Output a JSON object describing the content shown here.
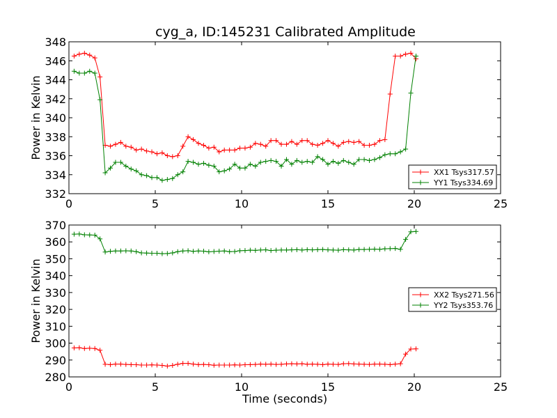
{
  "title": "cyg_a, ID:145231 Calibrated Amplitude",
  "colors": {
    "red": "#ff0000",
    "green": "#008000",
    "axis": "#000000"
  },
  "chart_data": [
    {
      "type": "line",
      "title": "cyg_a, ID:145231 Calibrated Amplitude",
      "xlabel": "",
      "ylabel": "Power in Kelvin",
      "xlim": [
        0,
        25
      ],
      "ylim": [
        332,
        348
      ],
      "xticks": [
        0,
        5,
        10,
        15,
        20,
        25
      ],
      "yticks": [
        332,
        334,
        336,
        338,
        340,
        342,
        344,
        346,
        348
      ],
      "legend_position": "lower-right",
      "x": [
        0.3,
        0.6,
        0.9,
        1.2,
        1.5,
        1.8,
        2.1,
        2.4,
        2.7,
        3.0,
        3.3,
        3.6,
        3.9,
        4.2,
        4.5,
        4.8,
        5.1,
        5.4,
        5.7,
        6.0,
        6.3,
        6.6,
        6.9,
        7.2,
        7.5,
        7.8,
        8.1,
        8.4,
        8.7,
        9.0,
        9.3,
        9.6,
        9.9,
        10.2,
        10.5,
        10.8,
        11.1,
        11.4,
        11.7,
        12.0,
        12.3,
        12.6,
        12.9,
        13.2,
        13.5,
        13.8,
        14.1,
        14.4,
        14.7,
        15.0,
        15.3,
        15.6,
        15.9,
        16.2,
        16.5,
        16.8,
        17.1,
        17.4,
        17.7,
        18.0,
        18.3,
        18.6,
        18.9,
        19.2,
        19.5,
        19.8,
        20.1
      ],
      "series": [
        {
          "name": "XX1 Tsys317.57",
          "color": "#ff0000",
          "values": [
            346.5,
            346.7,
            346.8,
            346.6,
            346.3,
            344.3,
            337.1,
            337.0,
            337.2,
            337.4,
            337.0,
            336.9,
            336.6,
            336.7,
            336.5,
            336.4,
            336.2,
            336.3,
            336.0,
            335.9,
            336.0,
            337.0,
            338.0,
            337.7,
            337.3,
            337.1,
            336.8,
            336.9,
            336.4,
            336.6,
            336.6,
            336.6,
            336.8,
            336.8,
            336.9,
            337.3,
            337.2,
            337.0,
            337.6,
            337.6,
            337.2,
            337.2,
            337.5,
            337.2,
            337.6,
            337.6,
            337.2,
            337.1,
            337.3,
            337.6,
            337.3,
            337.0,
            337.4,
            337.5,
            337.4,
            337.5,
            337.1,
            337.1,
            337.2,
            337.6,
            337.7,
            342.5,
            346.5,
            346.5,
            346.7,
            346.8,
            346.2
          ]
        },
        {
          "name": "YY1 Tsys334.69",
          "color": "#008000",
          "values": [
            344.9,
            344.7,
            344.7,
            344.9,
            344.7,
            341.9,
            334.2,
            334.7,
            335.3,
            335.3,
            334.9,
            334.6,
            334.4,
            334.0,
            333.9,
            333.7,
            333.7,
            333.4,
            333.5,
            333.6,
            334.0,
            334.3,
            335.4,
            335.3,
            335.1,
            335.2,
            335.0,
            334.9,
            334.3,
            334.4,
            334.6,
            335.1,
            334.7,
            334.7,
            335.1,
            334.9,
            335.3,
            335.4,
            335.5,
            335.4,
            334.9,
            335.6,
            335.1,
            335.5,
            335.3,
            335.4,
            335.3,
            335.9,
            335.6,
            335.1,
            335.4,
            335.2,
            335.5,
            335.3,
            335.1,
            335.6,
            335.6,
            335.5,
            335.6,
            335.8,
            336.1,
            336.2,
            336.2,
            336.4,
            336.7,
            342.6,
            346.5
          ]
        }
      ]
    },
    {
      "type": "line",
      "title": "",
      "xlabel": "Time (seconds)",
      "ylabel": "Power in Kelvin",
      "xlim": [
        0,
        25
      ],
      "ylim": [
        280,
        370
      ],
      "xticks": [
        0,
        5,
        10,
        15,
        20,
        25
      ],
      "yticks": [
        280,
        290,
        300,
        310,
        320,
        330,
        340,
        350,
        360,
        370
      ],
      "legend_position": "center-right",
      "x": [
        0.3,
        0.6,
        0.9,
        1.2,
        1.5,
        1.8,
        2.1,
        2.4,
        2.7,
        3.0,
        3.3,
        3.6,
        3.9,
        4.2,
        4.5,
        4.8,
        5.1,
        5.4,
        5.7,
        6.0,
        6.3,
        6.6,
        6.9,
        7.2,
        7.5,
        7.8,
        8.1,
        8.4,
        8.7,
        9.0,
        9.3,
        9.6,
        9.9,
        10.2,
        10.5,
        10.8,
        11.1,
        11.4,
        11.7,
        12.0,
        12.3,
        12.6,
        12.9,
        13.2,
        13.5,
        13.8,
        14.1,
        14.4,
        14.7,
        15.0,
        15.3,
        15.6,
        15.9,
        16.2,
        16.5,
        16.8,
        17.1,
        17.4,
        17.7,
        18.0,
        18.3,
        18.6,
        18.9,
        19.2,
        19.5,
        19.8,
        20.1
      ],
      "series": [
        {
          "name": "XX2 Tsys271.56",
          "color": "#ff0000",
          "values": [
            297.2,
            297.3,
            296.8,
            297.0,
            296.8,
            295.8,
            287.5,
            287.3,
            287.6,
            287.6,
            287.4,
            287.3,
            287.2,
            287.0,
            287.0,
            287.1,
            287.0,
            286.8,
            286.4,
            286.8,
            287.5,
            288.0,
            288.0,
            287.6,
            287.3,
            287.4,
            287.2,
            286.9,
            287.0,
            287.0,
            287.0,
            287.1,
            287.0,
            287.2,
            287.3,
            287.4,
            287.6,
            287.5,
            287.6,
            287.4,
            287.5,
            287.7,
            287.8,
            287.7,
            287.8,
            287.5,
            287.6,
            287.5,
            287.3,
            287.6,
            287.5,
            287.4,
            287.8,
            287.9,
            287.7,
            287.6,
            287.5,
            287.4,
            287.6,
            287.6,
            287.5,
            287.3,
            287.6,
            287.8,
            293.5,
            296.5,
            296.6
          ]
        },
        {
          "name": "YY2 Tsys353.76",
          "color": "#008000",
          "values": [
            364.6,
            364.7,
            364.2,
            364.1,
            364.0,
            361.8,
            354.0,
            354.4,
            354.6,
            354.6,
            354.7,
            354.6,
            354.2,
            353.5,
            353.4,
            353.3,
            353.3,
            353.0,
            353.1,
            353.5,
            354.2,
            354.6,
            354.8,
            354.4,
            354.6,
            354.5,
            354.1,
            354.3,
            354.5,
            354.6,
            354.2,
            354.3,
            354.8,
            354.9,
            355.1,
            355.0,
            355.2,
            355.3,
            354.9,
            355.1,
            355.2,
            355.2,
            355.3,
            355.4,
            355.2,
            355.4,
            355.3,
            355.4,
            355.5,
            355.3,
            355.2,
            355.1,
            355.4,
            355.3,
            355.2,
            355.5,
            355.5,
            355.6,
            355.7,
            355.6,
            355.9,
            356.0,
            356.1,
            355.6,
            361.5,
            366.0,
            366.2
          ]
        }
      ]
    }
  ]
}
